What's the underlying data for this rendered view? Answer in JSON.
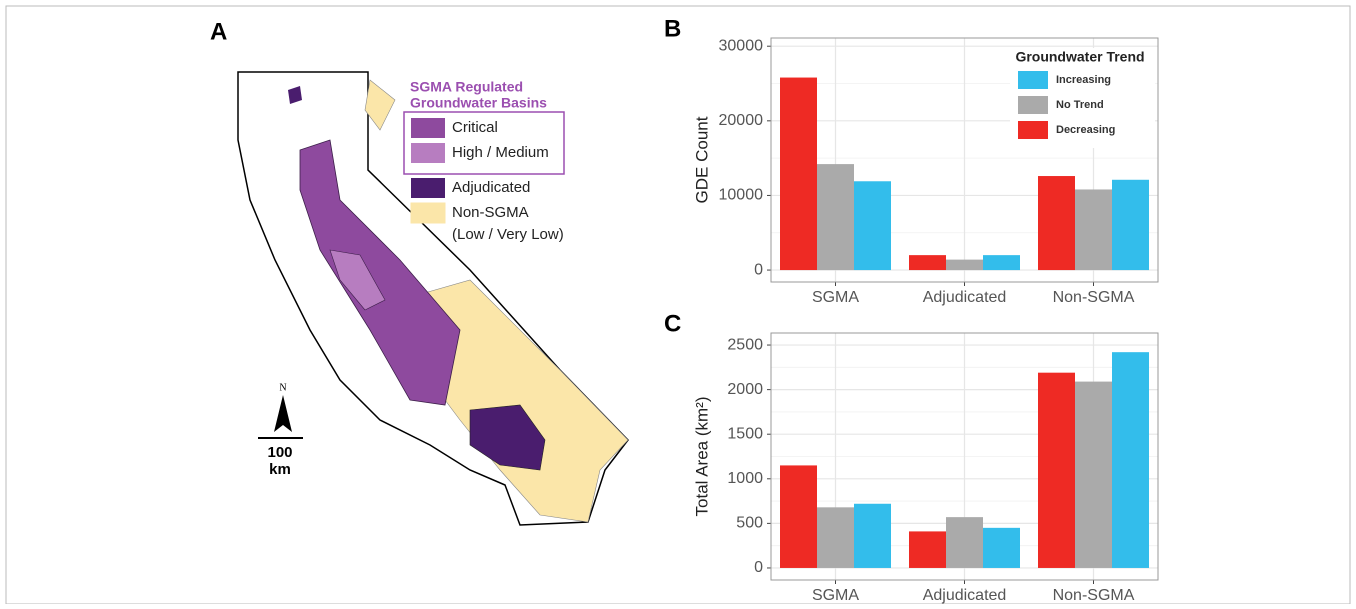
{
  "map": {
    "label": "A",
    "legend_title": [
      "SGMA Regulated",
      "Groundwater Basins"
    ],
    "legend": [
      {
        "name": "Critical",
        "color": "#8e4a9e"
      },
      {
        "name": "High / Medium",
        "color": "#b77dc0"
      },
      {
        "name": "Adjudicated",
        "color": "#4a1d6e"
      },
      {
        "name": "Non-SGMA",
        "name2": "(Low / Very Low)",
        "color": "#fbe6a9"
      }
    ],
    "north": "N",
    "scale": [
      "100",
      "km"
    ]
  },
  "chart_data": [
    {
      "type": "bar",
      "panel": "B",
      "y_label": "GDE Count",
      "categories": [
        "SGMA",
        "Adjudicated",
        "Non-SGMA"
      ],
      "series": [
        {
          "name": "Decreasing",
          "color": "#ee2a24",
          "values": [
            25800,
            2000,
            12600
          ]
        },
        {
          "name": "No Trend",
          "color": "#aaaaaa",
          "values": [
            14200,
            1400,
            10800
          ]
        },
        {
          "name": "Increasing",
          "color": "#33bdeb",
          "values": [
            11900,
            2000,
            12100
          ]
        }
      ],
      "legend_title": "Groundwater Trend",
      "legend": "top-right",
      "ylim": [
        -1600,
        31100
      ],
      "yticks": [
        0,
        10000,
        20000,
        30000
      ],
      "grid": true
    },
    {
      "type": "bar",
      "panel": "C",
      "y_label": "Total Area (km²)",
      "categories": [
        "SGMA",
        "Adjudicated",
        "Non-SGMA"
      ],
      "series": [
        {
          "color": "#ee2a24",
          "values": [
            1150,
            410,
            2190
          ]
        },
        {
          "color": "#aaaaaa",
          "values": [
            680,
            570,
            2090
          ]
        },
        {
          "color": "#33bdeb",
          "values": [
            720,
            450,
            2420
          ]
        }
      ],
      "ylim": [
        -135,
        2635
      ],
      "yticks": [
        0,
        500,
        1000,
        1500,
        2000,
        2500
      ],
      "grid": true
    }
  ]
}
